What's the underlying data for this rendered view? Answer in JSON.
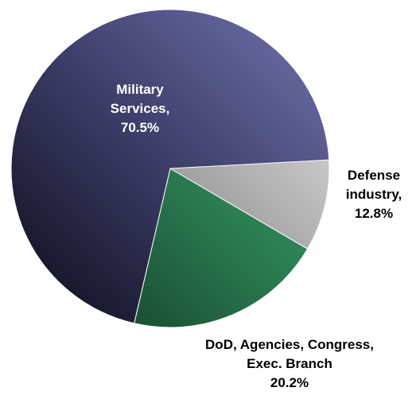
{
  "chart_data": {
    "type": "pie",
    "title": "",
    "slices": [
      {
        "name_lines": [
          "Military",
          "Services,"
        ],
        "value_label": "70.5%",
        "value": 70.5,
        "colors": {
          "light": "#6c6fa8",
          "mid": "#3c3d68",
          "dark": "#0e0e1d"
        }
      },
      {
        "name_lines": [
          "Defense",
          "industry,"
        ],
        "value_label": "12.8%",
        "value": 12.8,
        "colors": {
          "light": "#e4e4e4",
          "mid": "#a0a0a0",
          "dark": "#4a4a4a"
        }
      },
      {
        "name_lines": [
          "DoD, Agencies, Congress,",
          "Exec. Branch"
        ],
        "value_label": "20.2%",
        "value": 20.2,
        "colors": {
          "light": "#3da772",
          "mid": "#2a7a50",
          "dark": "#123b25"
        }
      }
    ],
    "label_colors": [
      "#ffffff",
      "#000000",
      "#000000"
    ]
  }
}
